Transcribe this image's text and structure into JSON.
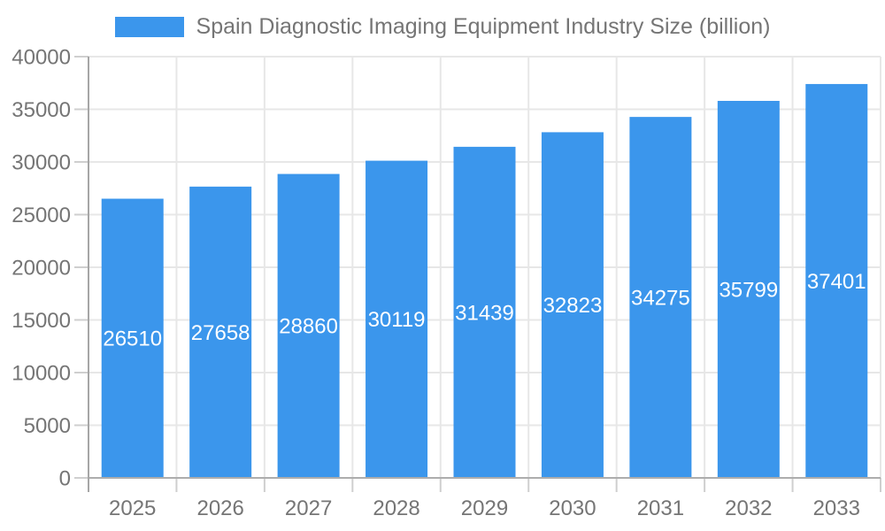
{
  "chart_data": {
    "type": "bar",
    "title": "Spain Diagnostic Imaging Equipment Industry Size (billion)",
    "legend": [
      {
        "label": "Spain Diagnostic Imaging Equipment Industry Size (billion)"
      }
    ],
    "legend_position": "top",
    "categories": [
      "2025",
      "2026",
      "2027",
      "2028",
      "2029",
      "2030",
      "2031",
      "2032",
      "2033"
    ],
    "series": [
      {
        "name": "Spain Diagnostic Imaging Equipment Industry Size (billion)",
        "values": [
          26510,
          27658,
          28860,
          30119,
          31439,
          32823,
          34275,
          35799,
          37401
        ]
      }
    ],
    "bar_labels_shown": true,
    "xlabel": "",
    "ylabel": "",
    "ylim": [
      0,
      40000
    ],
    "ytick_step": 5000,
    "yticks": [
      0,
      5000,
      10000,
      15000,
      20000,
      25000,
      30000,
      35000,
      40000
    ],
    "grid": "both",
    "colors": {
      "bar": "#3B96EC",
      "axis_text": "#757575",
      "grid_line": "#E7E7E7",
      "y_axis_line": "#A6A6A6",
      "x_axis_line": "#ADADAD",
      "tick_line": "#CFCFCF",
      "value_label": "#FFFFFF",
      "background": "#FFFFFF"
    }
  }
}
